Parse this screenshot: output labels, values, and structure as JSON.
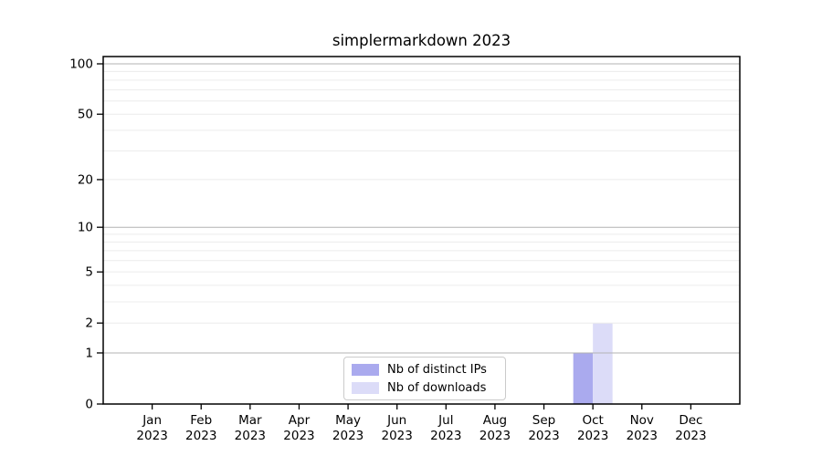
{
  "figure": {
    "background": "#ffffff"
  },
  "chart_data": {
    "type": "bar",
    "title": "simplermarkdown 2023",
    "x_ticks": [
      {
        "line1": "Jan",
        "line2": "2023"
      },
      {
        "line1": "Feb",
        "line2": "2023"
      },
      {
        "line1": "Mar",
        "line2": "2023"
      },
      {
        "line1": "Apr",
        "line2": "2023"
      },
      {
        "line1": "May",
        "line2": "2023"
      },
      {
        "line1": "Jun",
        "line2": "2023"
      },
      {
        "line1": "Jul",
        "line2": "2023"
      },
      {
        "line1": "Aug",
        "line2": "2023"
      },
      {
        "line1": "Sep",
        "line2": "2023"
      },
      {
        "line1": "Oct",
        "line2": "2023"
      },
      {
        "line1": "Nov",
        "line2": "2023"
      },
      {
        "line1": "Dec",
        "line2": "2023"
      }
    ],
    "series": [
      {
        "name": "Nb of distinct IPs",
        "color": "#aaaaee",
        "values": [
          0,
          0,
          0,
          0,
          0,
          0,
          0,
          0,
          0,
          1,
          0,
          0
        ]
      },
      {
        "name": "Nb of downloads",
        "color": "#dcdcf8",
        "values": [
          0,
          0,
          0,
          0,
          0,
          0,
          0,
          0,
          0,
          2,
          0,
          0
        ]
      }
    ],
    "yscale": "log1p",
    "ylim": [
      0,
      110.5
    ],
    "y_tick_values": [
      0,
      1,
      2,
      5,
      10,
      20,
      50,
      100
    ],
    "y_major_gridlines": [
      1,
      10,
      100
    ],
    "y_minor_gridlines": [
      2,
      3,
      4,
      5,
      6,
      7,
      8,
      9,
      20,
      30,
      40,
      50,
      60,
      70,
      80,
      90
    ],
    "grid": "horizontal",
    "legend_position": "lower center inside",
    "colors": {
      "major_grid": "#b3b3b3",
      "minor_grid": "#ececec",
      "axis": "#000000",
      "text": "#000000"
    }
  }
}
